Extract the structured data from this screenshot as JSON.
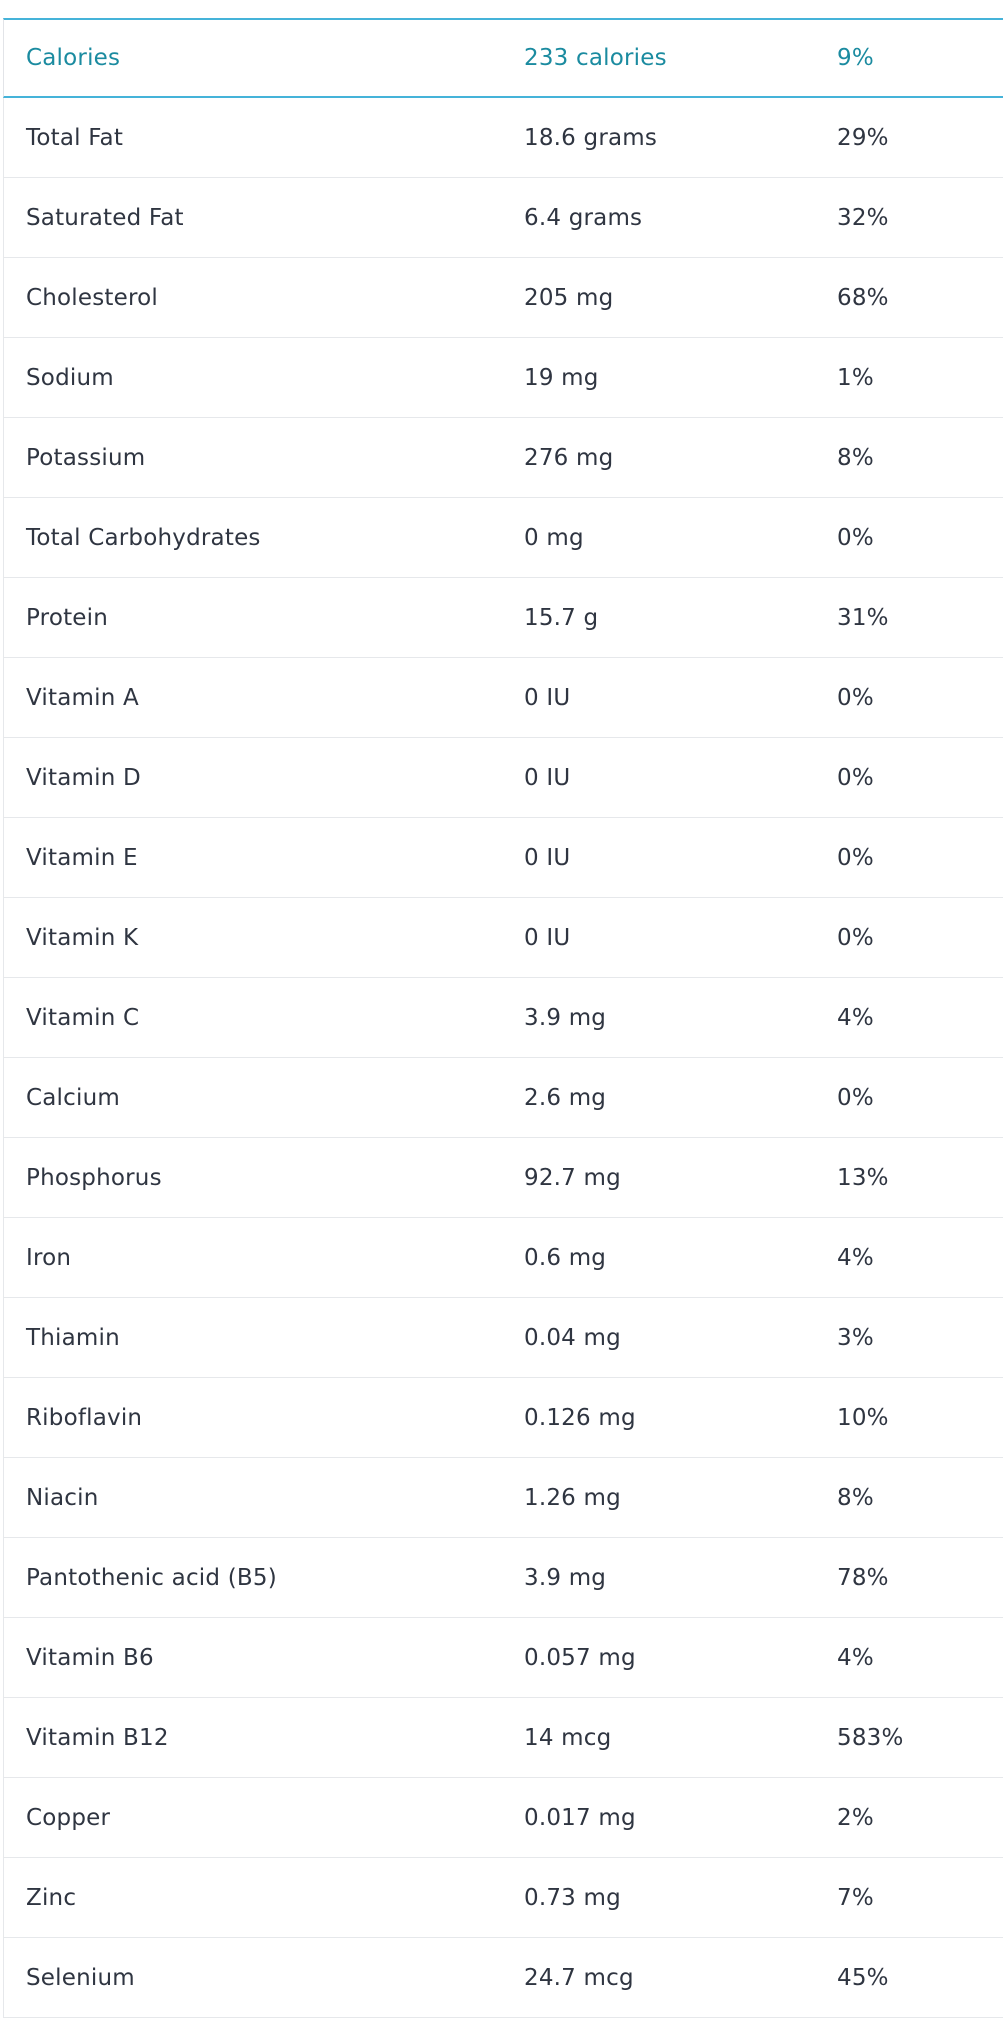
{
  "header": {
    "name": "Calories",
    "amount": "233 calories",
    "dv": "9%"
  },
  "rows": [
    {
      "name": "Total Fat",
      "amount": "18.6 grams",
      "dv": "29%"
    },
    {
      "name": "Saturated Fat",
      "amount": "6.4 grams",
      "dv": "32%"
    },
    {
      "name": "Cholesterol",
      "amount": "205 mg",
      "dv": "68%"
    },
    {
      "name": "Sodium",
      "amount": "19 mg",
      "dv": "1%"
    },
    {
      "name": "Potassium",
      "amount": "276 mg",
      "dv": "8%"
    },
    {
      "name": "Total Carbohydrates",
      "amount": "0 mg",
      "dv": "0%"
    },
    {
      "name": "Protein",
      "amount": "15.7 g",
      "dv": "31%"
    },
    {
      "name": "Vitamin A",
      "amount": "0 IU",
      "dv": "0%"
    },
    {
      "name": "Vitamin D",
      "amount": "0 IU",
      "dv": "0%"
    },
    {
      "name": "Vitamin E",
      "amount": "0 IU",
      "dv": "0%"
    },
    {
      "name": "Vitamin K",
      "amount": "0 IU",
      "dv": "0%"
    },
    {
      "name": "Vitamin C",
      "amount": "3.9 mg",
      "dv": "4%"
    },
    {
      "name": "Calcium",
      "amount": "2.6 mg",
      "dv": "0%"
    },
    {
      "name": "Phosphorus",
      "amount": "92.7 mg",
      "dv": "13%"
    },
    {
      "name": "Iron",
      "amount": "0.6 mg",
      "dv": "4%"
    },
    {
      "name": "Thiamin",
      "amount": "0.04 mg",
      "dv": "3%"
    },
    {
      "name": "Riboflavin",
      "amount": "0.126 mg",
      "dv": "10%"
    },
    {
      "name": "Niacin",
      "amount": "1.26 mg",
      "dv": "8%"
    },
    {
      "name": "Pantothenic acid (B5)",
      "amount": "3.9 mg",
      "dv": "78%"
    },
    {
      "name": "Vitamin B6",
      "amount": "0.057 mg",
      "dv": "4%"
    },
    {
      "name": "Vitamin B12",
      "amount": "14 mcg",
      "dv": "583%"
    },
    {
      "name": "Copper",
      "amount": "0.017 mg",
      "dv": "2%"
    },
    {
      "name": "Zinc",
      "amount": "0.73 mg",
      "dv": "7%"
    },
    {
      "name": "Selenium",
      "amount": "24.7 mcg",
      "dv": "45%"
    }
  ],
  "colors": {
    "accent": "#1b8ba0",
    "header_rule": "#45b3d9",
    "text": "#2f3541",
    "divider": "#e6e8eb"
  }
}
